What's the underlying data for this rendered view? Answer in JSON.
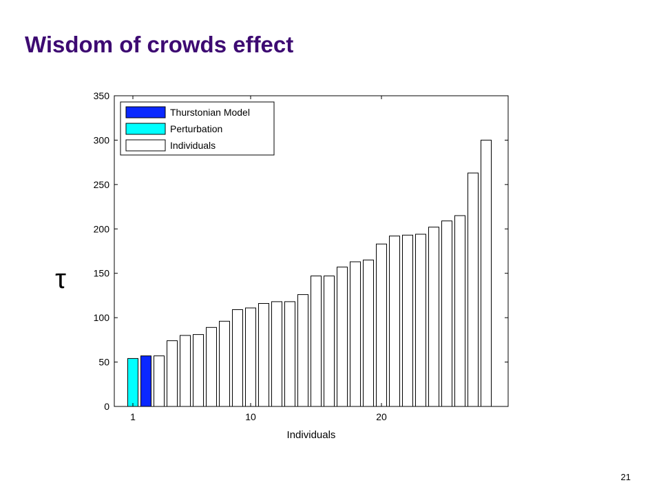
{
  "slide": {
    "title": "Wisdom of crowds effect",
    "page_number": "21"
  },
  "chart_data": {
    "type": "bar",
    "xlabel": "Individuals",
    "ylabel": "τ",
    "ylim": [
      0,
      350
    ],
    "yticks": [
      0,
      50,
      100,
      150,
      200,
      250,
      300,
      350
    ],
    "xticks": [
      1,
      10,
      20
    ],
    "grid": false,
    "legend_position": "top-left",
    "legend": [
      {
        "label": "Thurstonian Model",
        "color": "#0a28ff"
      },
      {
        "label": "Perturbation",
        "color": "#00ffff"
      },
      {
        "label": "Individuals",
        "color": "#ffffff"
      }
    ],
    "bars": [
      {
        "x": 1,
        "value": 54,
        "series": "Perturbation",
        "color": "#00ffff"
      },
      {
        "x": 2,
        "value": 57,
        "series": "Thurstonian Model",
        "color": "#0a28ff"
      },
      {
        "x": 3,
        "value": 57,
        "series": "Individuals",
        "color": "#ffffff"
      },
      {
        "x": 4,
        "value": 74,
        "series": "Individuals",
        "color": "#ffffff"
      },
      {
        "x": 5,
        "value": 80,
        "series": "Individuals",
        "color": "#ffffff"
      },
      {
        "x": 6,
        "value": 81,
        "series": "Individuals",
        "color": "#ffffff"
      },
      {
        "x": 7,
        "value": 89,
        "series": "Individuals",
        "color": "#ffffff"
      },
      {
        "x": 8,
        "value": 96,
        "series": "Individuals",
        "color": "#ffffff"
      },
      {
        "x": 9,
        "value": 109,
        "series": "Individuals",
        "color": "#ffffff"
      },
      {
        "x": 10,
        "value": 111,
        "series": "Individuals",
        "color": "#ffffff"
      },
      {
        "x": 11,
        "value": 116,
        "series": "Individuals",
        "color": "#ffffff"
      },
      {
        "x": 12,
        "value": 118,
        "series": "Individuals",
        "color": "#ffffff"
      },
      {
        "x": 13,
        "value": 118,
        "series": "Individuals",
        "color": "#ffffff"
      },
      {
        "x": 14,
        "value": 126,
        "series": "Individuals",
        "color": "#ffffff"
      },
      {
        "x": 15,
        "value": 147,
        "series": "Individuals",
        "color": "#ffffff"
      },
      {
        "x": 16,
        "value": 147,
        "series": "Individuals",
        "color": "#ffffff"
      },
      {
        "x": 17,
        "value": 157,
        "series": "Individuals",
        "color": "#ffffff"
      },
      {
        "x": 18,
        "value": 163,
        "series": "Individuals",
        "color": "#ffffff"
      },
      {
        "x": 19,
        "value": 165,
        "series": "Individuals",
        "color": "#ffffff"
      },
      {
        "x": 20,
        "value": 183,
        "series": "Individuals",
        "color": "#ffffff"
      },
      {
        "x": 21,
        "value": 192,
        "series": "Individuals",
        "color": "#ffffff"
      },
      {
        "x": 22,
        "value": 193,
        "series": "Individuals",
        "color": "#ffffff"
      },
      {
        "x": 23,
        "value": 194,
        "series": "Individuals",
        "color": "#ffffff"
      },
      {
        "x": 24,
        "value": 202,
        "series": "Individuals",
        "color": "#ffffff"
      },
      {
        "x": 25,
        "value": 209,
        "series": "Individuals",
        "color": "#ffffff"
      },
      {
        "x": 26,
        "value": 215,
        "series": "Individuals",
        "color": "#ffffff"
      },
      {
        "x": 27,
        "value": 263,
        "series": "Individuals",
        "color": "#ffffff"
      },
      {
        "x": 28,
        "value": 300,
        "series": "Individuals",
        "color": "#ffffff"
      }
    ]
  }
}
